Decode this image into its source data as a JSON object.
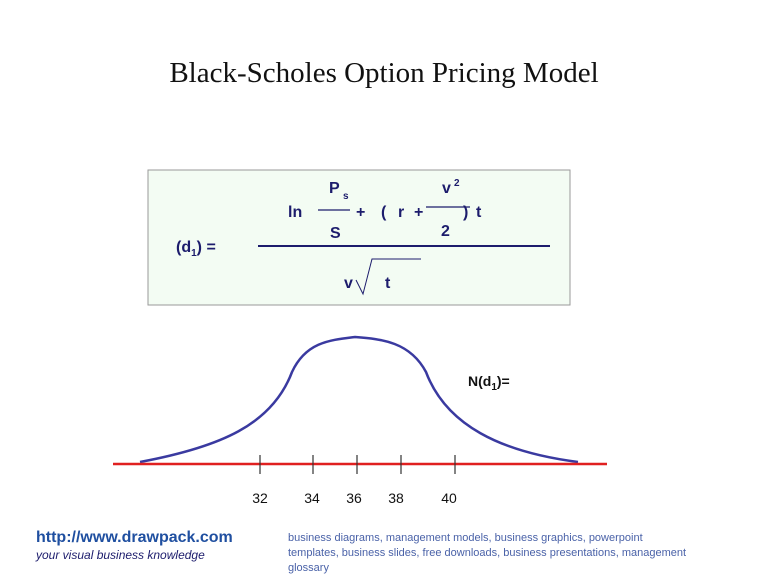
{
  "title": "Black-Scholes Option Pricing Model",
  "formula": {
    "price": "P",
    "price_sub": "s",
    "ln": "ln",
    "strike": "S",
    "plus1": "+",
    "open_paren": "(",
    "rate": "r",
    "plus2": "+",
    "vol": "v",
    "vol_sup": "2",
    "two": "2",
    "close_paren": ")",
    "time": "t",
    "lhs_start": "(d",
    "lhs_sub": "1",
    "lhs_end": ") =",
    "den_vol": "v",
    "den_time": "t"
  },
  "curve_label": {
    "start": "N(d",
    "sub": "1",
    "end": ")="
  },
  "axis_labels": [
    32,
    34,
    36,
    38,
    40
  ],
  "footer": {
    "link": "http://www.drawpack.com",
    "tagline": "your visual business knowledge",
    "keywords": [
      "business diagrams, management models, business graphics, powerpoint",
      "templates, business slides, free downloads, business presentations, management",
      "glossary"
    ]
  }
}
